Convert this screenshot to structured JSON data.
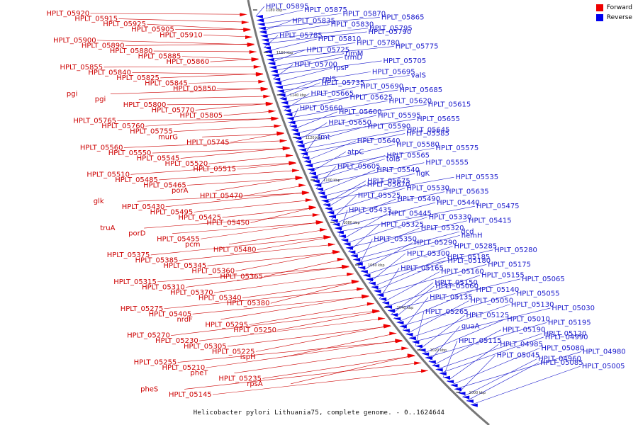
{
  "caption": "Helicobacter pylori Lithuania75, complete genome. - 0..1624644",
  "legend": {
    "forward_label": "Forward",
    "reverse_label": "Reverse",
    "forward_color": "#ee0000",
    "reverse_color": "#0000ee"
  },
  "ticks": [
    "1180 kbp",
    "1160 kbp",
    "1140 kbp",
    "1120 kbp",
    "1100 kbp",
    "1080 kbp",
    "1060 kbp",
    "1040 kbp",
    "1020 kbp",
    "1000 kbp"
  ],
  "forward_labels": [
    "HPLT_05920",
    "HPLT_05915",
    "HPLT_05925",
    "HPLT_05905",
    "HPLT_05910",
    "HPLT_05900",
    "HPLT_05890",
    "HPLT_05880",
    "HPLT_05885",
    "HPLT_05860",
    "HPLT_05855",
    "HPLT_05840",
    "HPLT_05825",
    "HPLT_05845",
    "HPLT_05850",
    "pgi",
    "pgi",
    "HPLT_05800",
    "HPLT_05770",
    "HPLT_05805",
    "HPLT_05765",
    "HPLT_05760",
    "HPLT_05755",
    "murG",
    "HPLT_05745",
    "HPLT_05560",
    "HPLT_05550",
    "HPLT_05545",
    "HPLT_05520",
    "HPLT_05515",
    "HPLT_05510",
    "HPLT_05485",
    "HPLT_05465",
    "porA",
    "HPLT_05470",
    "glk",
    "HPLT_05430",
    "HPLT_05495",
    "HPLT_05425",
    "HPLT_05450",
    "truA",
    "porD",
    "HPLT_05455",
    "pcm",
    "HPLT_05480",
    "HPLT_05375",
    "HPLT_05385",
    "HPLT_05345",
    "HPLT_05360",
    "HPLT_05365",
    "HPLT_05315",
    "HPLT_05310",
    "HPLT_05370",
    "HPLT_05340",
    "HPLT_05380",
    "HPLT_05275",
    "HPLT_05405",
    "nrdF",
    "HPLT_05295",
    "HPLT_05250",
    "HPLT_05270",
    "HPLT_05230",
    "HPLT_05305",
    "HPLT_05225",
    "ispH",
    "HPLT_05255",
    "HPLT_05210",
    "pheT",
    "HPLT_05235",
    "rpsA",
    "pheS",
    "HPLT_05145"
  ],
  "reverse_labels": [
    "HPLT_05895",
    "HPLT_05875",
    "HPLT_05870",
    "HPLT_05865",
    "HPLT_05835",
    "HPLT_05830",
    "HPLT_05795",
    "HPLT_05790",
    "HPLT_05785",
    "HPLT_05810",
    "HPLT_05780",
    "HPLT_05775",
    "HPLT_05725",
    "rimM",
    "trmD",
    "HPLT_05705",
    "HPLT_05700",
    "rpsP",
    "HPLT_05695",
    "valS",
    "rplS",
    "HPLT_05735",
    "HPLT_05690",
    "HPLT_05685",
    "HPLT_05665",
    "HPLT_05625",
    "HPLT_05620",
    "HPLT_05615",
    "HPLT_05660",
    "HPLT_05600",
    "HPLT_05595",
    "HPLT_05655",
    "HPLT_05650",
    "HPLT_05590",
    "HPLT_05645",
    "HPLT_05585",
    "fmt",
    "HPLT_05640",
    "HPLT_05580",
    "HPLT_05575",
    "atpC",
    "HPLT_05565",
    "tolB",
    "HPLT_05555",
    "HPLT_05605",
    "HPLT_05540",
    "flgK",
    "HPLT_05535",
    "HPLT_05675",
    "HPLT_05670",
    "HPLT_05530",
    "HPLT_05635",
    "HPLT_05525",
    "HPLT_05490",
    "HPLT_05440",
    "HPLT_05475",
    "HPLT_05435",
    "HPLT_05445",
    "HPLT_05330",
    "HPLT_05415",
    "HPLT_05325",
    "HPLT_05320",
    "dcd",
    "hemH",
    "HPLT_05350",
    "HPLT_05290",
    "HPLT_05285",
    "HPLT_05280",
    "HPLT_05300",
    "HPLT_05185",
    "HPLT_05180",
    "HPLT_05175",
    "HPLT_05165",
    "HPLT_05160",
    "HPLT_05155",
    "HPLT_05065",
    "HPLT_05150",
    "HPLT_05060",
    "HPLT_05140",
    "HPLT_05055",
    "HPLT_05135",
    "HPLT_05050",
    "HPLT_05130",
    "HPLT_05030",
    "HPLT_05265",
    "HPLT_05125",
    "HPLT_05010",
    "HPLT_05195",
    "guaA",
    "HPLT_05190",
    "HPLT_05120",
    "HPLT_04990",
    "HPLT_05115",
    "HPLT_04985",
    "HPLT_05080",
    "HPLT_04980",
    "HPLT_05045",
    "HPLT_04960",
    "HPLT_05085",
    "HPLT_05005"
  ]
}
